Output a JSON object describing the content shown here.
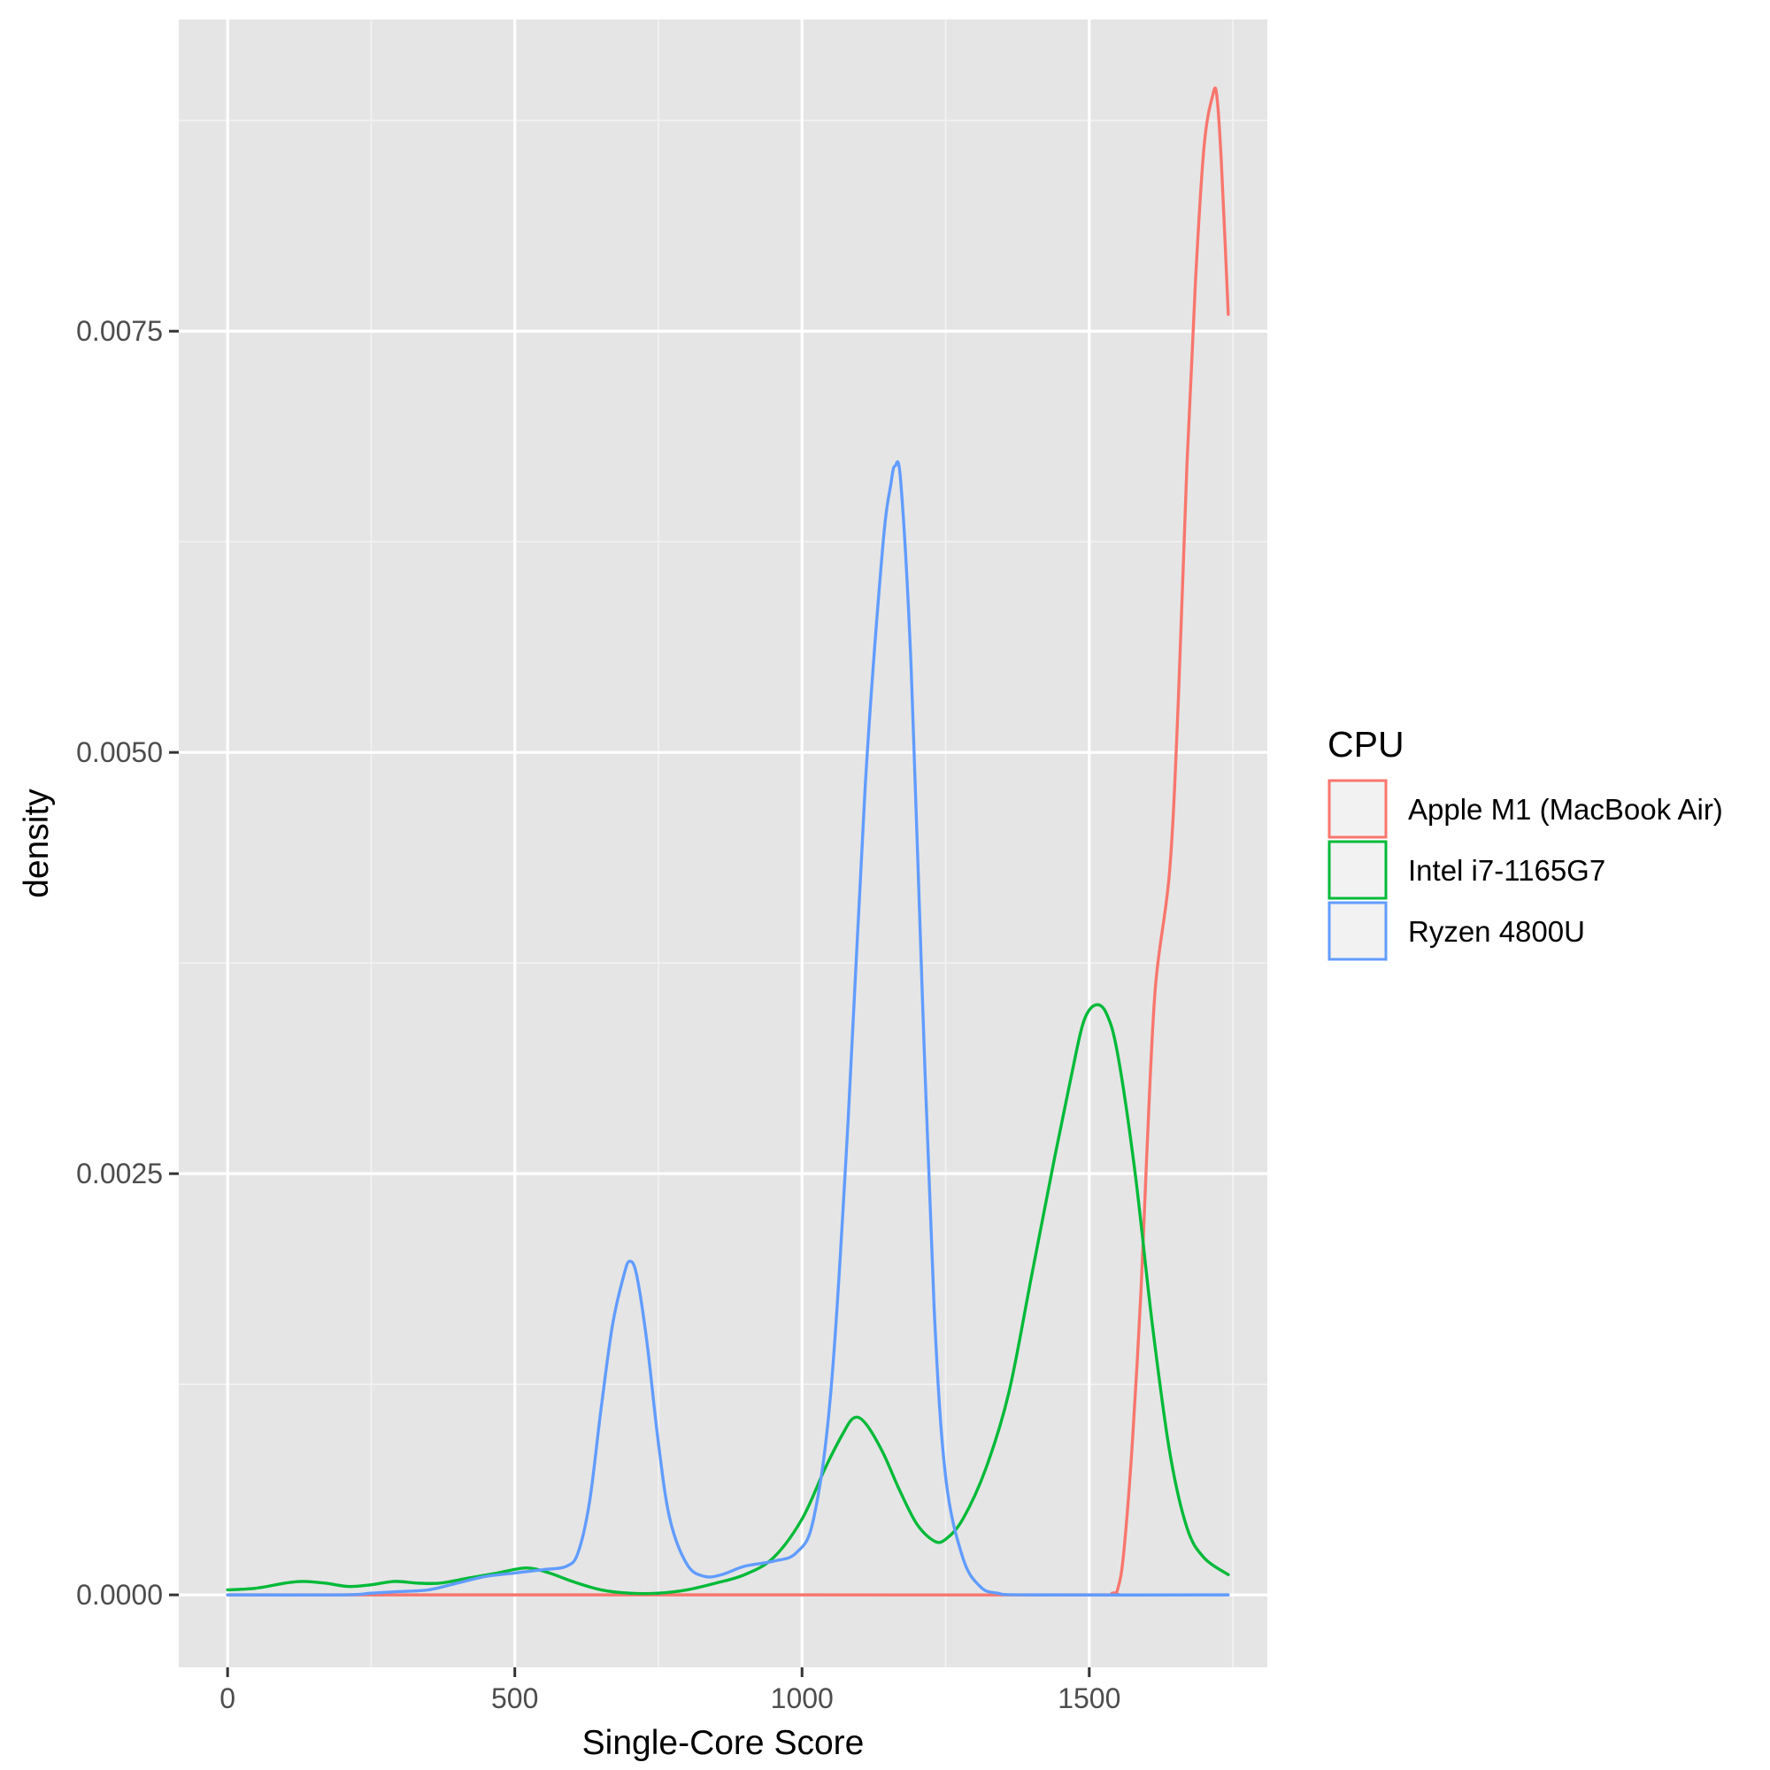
{
  "chart_data": {
    "type": "line",
    "title": "",
    "xlabel": "Single-Core Score",
    "ylabel": "density",
    "xlim": [
      -85,
      1810
    ],
    "ylim": [
      -0.00043,
      0.00935
    ],
    "x_ticks": [
      0,
      500,
      1000,
      1500
    ],
    "x_tick_labels": [
      "0",
      "500",
      "1000",
      "1500"
    ],
    "y_ticks": [
      0,
      0.0025,
      0.005,
      0.0075
    ],
    "y_tick_labels": [
      "0.0000",
      "0.0025",
      "0.0050",
      "0.0075"
    ],
    "grid": true,
    "legend": {
      "title": "CPU",
      "placement": "right"
    },
    "series": [
      {
        "name": "Apple M1 (MacBook Air)",
        "color": "#F8766D",
        "points": [
          [
            0,
            0
          ],
          [
            500,
            0
          ],
          [
            1000,
            0
          ],
          [
            1500,
            0
          ],
          [
            1540,
            1e-05
          ],
          [
            1550,
            4e-05
          ],
          [
            1560,
            0.00025
          ],
          [
            1575,
            0.0009
          ],
          [
            1590,
            0.0018
          ],
          [
            1600,
            0.0026
          ],
          [
            1615,
            0.0036
          ],
          [
            1640,
            0.0043
          ],
          [
            1655,
            0.0053
          ],
          [
            1670,
            0.0067
          ],
          [
            1685,
            0.0078
          ],
          [
            1700,
            0.0086
          ],
          [
            1715,
            0.0089
          ],
          [
            1722,
            0.0089
          ],
          [
            1730,
            0.0085
          ],
          [
            1742,
            0.0076
          ]
        ]
      },
      {
        "name": "Intel i7-1165G7",
        "color": "#00BA38",
        "points": [
          [
            0,
            3e-05
          ],
          [
            50,
            4e-05
          ],
          [
            100,
            7e-05
          ],
          [
            130,
            8e-05
          ],
          [
            170,
            7e-05
          ],
          [
            210,
            5e-05
          ],
          [
            250,
            6e-05
          ],
          [
            290,
            8e-05
          ],
          [
            330,
            7e-05
          ],
          [
            370,
            7e-05
          ],
          [
            420,
            0.0001
          ],
          [
            470,
            0.00013
          ],
          [
            520,
            0.00016
          ],
          [
            560,
            0.00013
          ],
          [
            600,
            8e-05
          ],
          [
            650,
            3e-05
          ],
          [
            700,
            1e-05
          ],
          [
            750,
            1e-05
          ],
          [
            800,
            3e-05
          ],
          [
            850,
            7e-05
          ],
          [
            900,
            0.00012
          ],
          [
            950,
            0.00022
          ],
          [
            1000,
            0.00045
          ],
          [
            1040,
            0.00075
          ],
          [
            1070,
            0.00095
          ],
          [
            1090,
            0.00105
          ],
          [
            1110,
            0.00102
          ],
          [
            1140,
            0.00085
          ],
          [
            1170,
            0.00062
          ],
          [
            1200,
            0.00042
          ],
          [
            1230,
            0.00032
          ],
          [
            1250,
            0.00033
          ],
          [
            1280,
            0.00045
          ],
          [
            1320,
            0.00075
          ],
          [
            1360,
            0.0012
          ],
          [
            1400,
            0.0019
          ],
          [
            1440,
            0.0026
          ],
          [
            1470,
            0.0031
          ],
          [
            1490,
            0.0034
          ],
          [
            1510,
            0.0035
          ],
          [
            1530,
            0.00345
          ],
          [
            1550,
            0.0032
          ],
          [
            1580,
            0.0025
          ],
          [
            1610,
            0.0016
          ],
          [
            1640,
            0.00085
          ],
          [
            1670,
            0.0004
          ],
          [
            1700,
            0.00022
          ],
          [
            1742,
            0.00012
          ]
        ]
      },
      {
        "name": "Ryzen 4800U",
        "color": "#619CFF",
        "points": [
          [
            0,
            0
          ],
          [
            200,
            0
          ],
          [
            250,
            1e-05
          ],
          [
            300,
            2e-05
          ],
          [
            350,
            3e-05
          ],
          [
            400,
            7e-05
          ],
          [
            450,
            0.00011
          ],
          [
            500,
            0.00013
          ],
          [
            550,
            0.00015
          ],
          [
            590,
            0.00017
          ],
          [
            610,
            0.00025
          ],
          [
            630,
            0.00055
          ],
          [
            650,
            0.0011
          ],
          [
            670,
            0.0016
          ],
          [
            690,
            0.0019
          ],
          [
            700,
            0.00198
          ],
          [
            712,
            0.0019
          ],
          [
            730,
            0.0015
          ],
          [
            750,
            0.0009
          ],
          [
            770,
            0.00045
          ],
          [
            800,
            0.00018
          ],
          [
            830,
            0.00011
          ],
          [
            860,
            0.00012
          ],
          [
            900,
            0.00017
          ],
          [
            950,
            0.0002
          ],
          [
            990,
            0.00025
          ],
          [
            1020,
            0.00045
          ],
          [
            1050,
            0.0012
          ],
          [
            1080,
            0.0028
          ],
          [
            1110,
            0.0048
          ],
          [
            1140,
            0.0062
          ],
          [
            1155,
            0.0066
          ],
          [
            1162,
            0.0067
          ],
          [
            1172,
            0.0066
          ],
          [
            1190,
            0.0055
          ],
          [
            1210,
            0.0035
          ],
          [
            1230,
            0.0017
          ],
          [
            1250,
            0.0007
          ],
          [
            1280,
            0.00022
          ],
          [
            1310,
            5e-05
          ],
          [
            1340,
            1e-05
          ],
          [
            1400,
            0
          ],
          [
            1742,
            0
          ]
        ]
      }
    ]
  }
}
